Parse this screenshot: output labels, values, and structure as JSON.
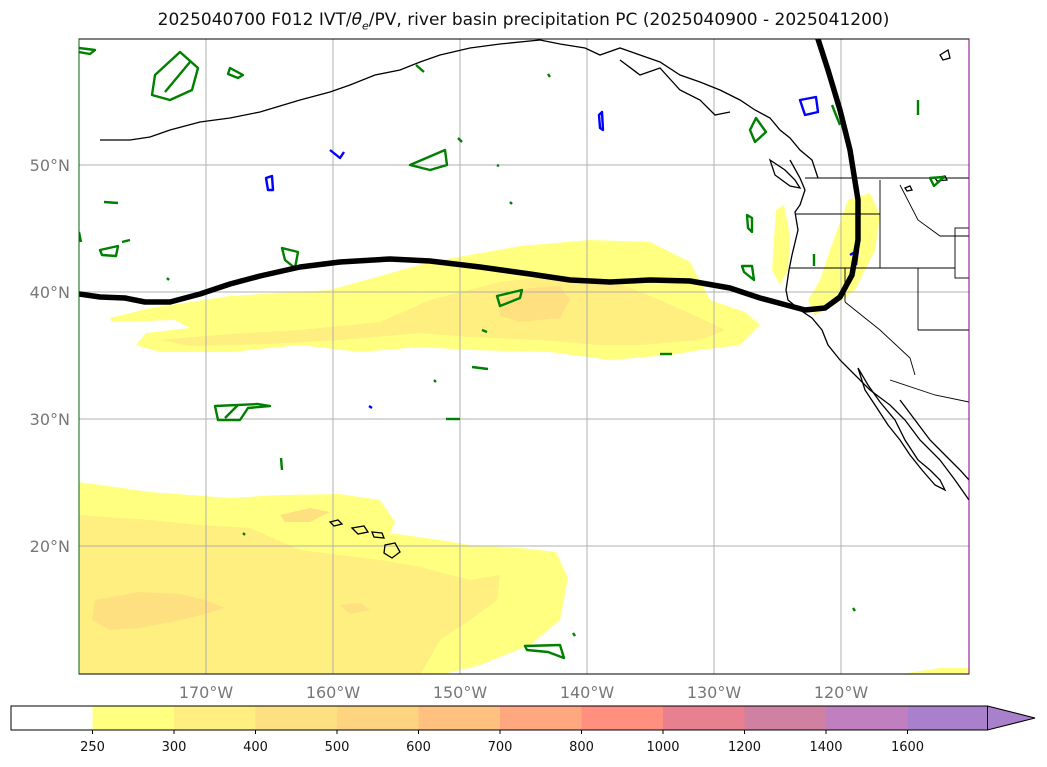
{
  "title": {
    "prefix": "2025040700 F012 IVT/",
    "theta": "θ",
    "theta_sub": "e",
    "suffix": "/PV, river basin precipitation PC (2025040900 - 2025041200)"
  },
  "map": {
    "lat_labels": [
      "50°N",
      "40°N",
      "30°N",
      "20°N"
    ],
    "lon_labels": [
      "170°W",
      "160°W",
      "150°W",
      "140°W",
      "130°W",
      "120°W"
    ],
    "colors": {
      "coast": "#000000",
      "ivt_low": "#ffff80",
      "ivt_mid": "#ffee80",
      "ivt_high": "#ffe080",
      "contour_green": "#008000",
      "contour_blue": "#0000ff",
      "grid": "#b0b0b0",
      "frame_left": "#006400",
      "frame_right": "#800080"
    }
  },
  "colorbar": {
    "ticks": [
      "250",
      "300",
      "400",
      "500",
      "600",
      "700",
      "800",
      "1000",
      "1200",
      "1400",
      "1600"
    ],
    "colors": [
      "#ffffff",
      "#ffff80",
      "#ffee80",
      "#ffe080",
      "#ffd480",
      "#ffc080",
      "#ffa880",
      "#ff9080",
      "#e88090",
      "#d080a0",
      "#c080c0",
      "#a880cc"
    ]
  }
}
